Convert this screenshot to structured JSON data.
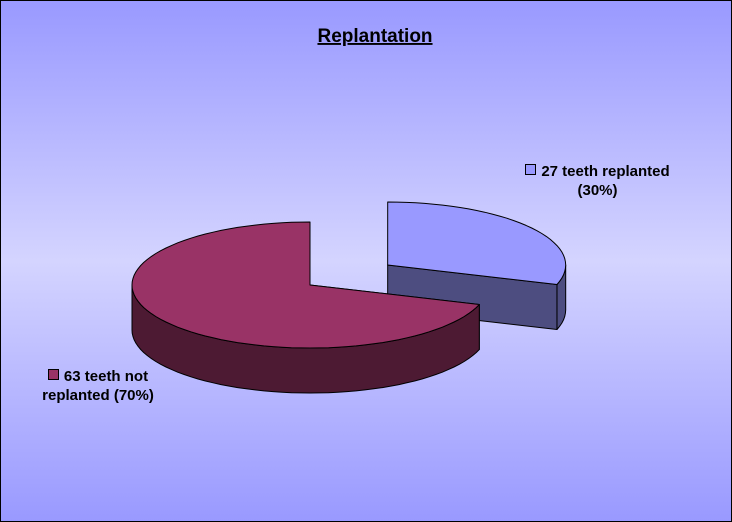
{
  "chart_data": {
    "type": "pie",
    "title": "Replantation",
    "values": [
      27,
      63
    ],
    "value_labels": [
      "27 teeth replanted (30%)",
      "63 teeth not replanted (70%)"
    ],
    "colors": [
      "#9999ff",
      "#993366"
    ],
    "side_colors": [
      "#4d4d80",
      "#4d1a33"
    ],
    "explode": [
      true,
      false
    ]
  }
}
